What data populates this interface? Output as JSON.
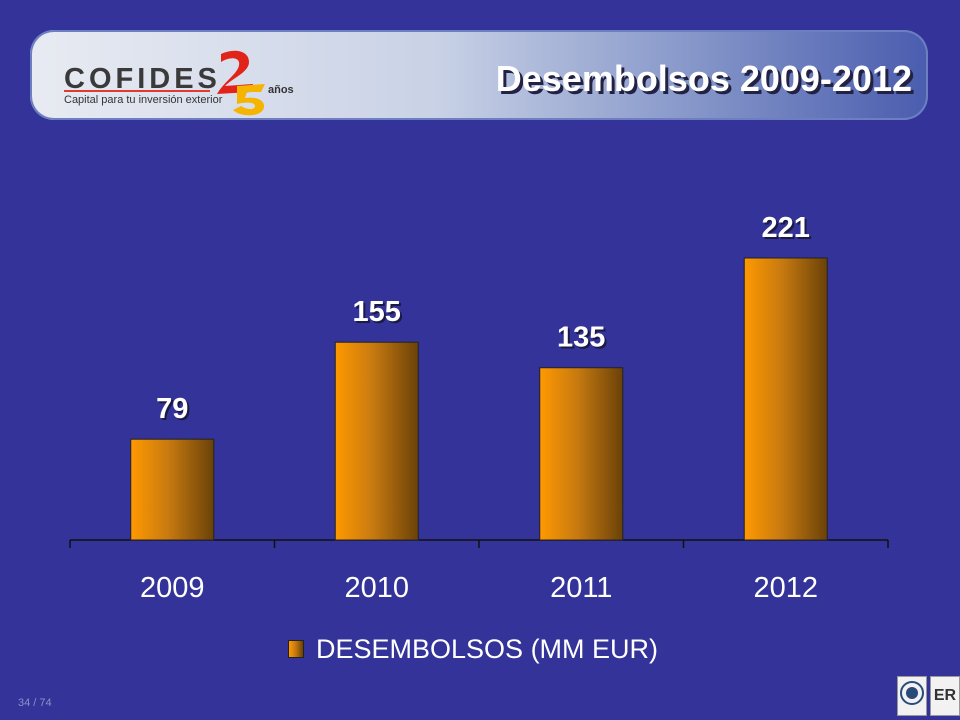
{
  "header": {
    "title": "Desembolsos 2009-2012",
    "logo_text": "COFIDES",
    "logo_tagline": "Capital para tu inversión exterior",
    "logo_anos": "años"
  },
  "footer": {
    "page_indicator": "34 / 74",
    "cert_logos": [
      "iqnet-icon",
      "er-certification-icon"
    ]
  },
  "colors": {
    "background": "#333399",
    "bar_light": "#ff9900",
    "bar_dark": "#6a4208",
    "text": "#ffffff"
  },
  "chart_data": {
    "type": "bar",
    "categories": [
      "2009",
      "2010",
      "2011",
      "2012"
    ],
    "series": [
      {
        "name": "DESEMBOLSOS (MM EUR)",
        "values": [
          79,
          155,
          135,
          221
        ]
      }
    ],
    "data_labels": [
      "79",
      "155",
      "135",
      "221"
    ],
    "ylim": [
      0,
      240
    ],
    "grid": false,
    "legend_position": "bottom"
  }
}
